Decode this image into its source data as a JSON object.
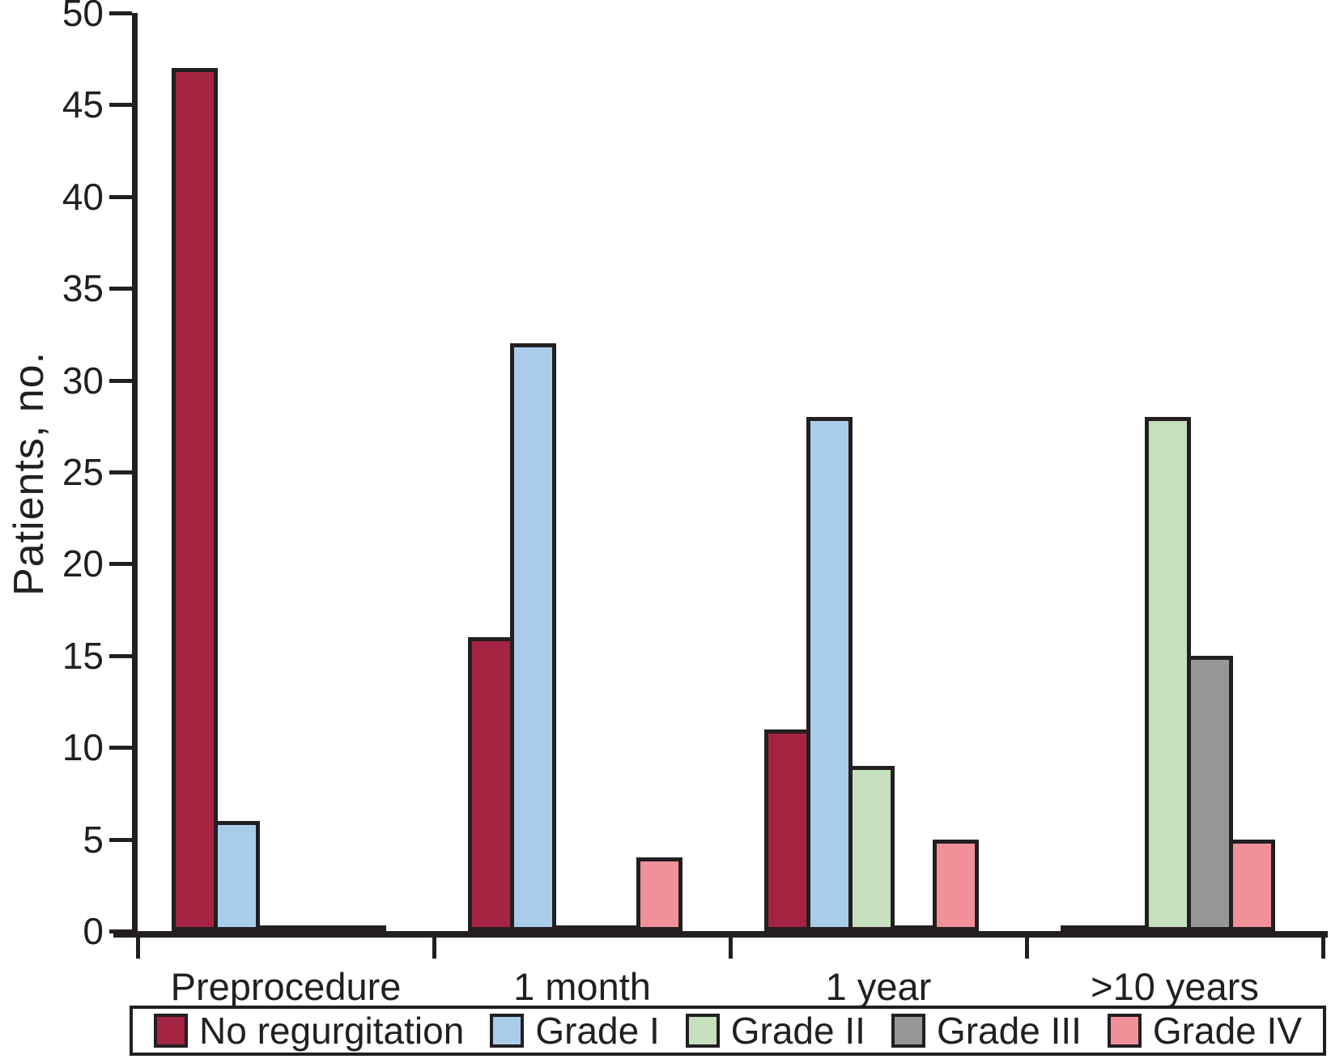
{
  "chart_data": {
    "type": "bar",
    "title": "",
    "xlabel": "",
    "ylabel": "Patients, no.",
    "ylim": [
      0,
      50
    ],
    "ytick_step": 5,
    "yticks": [
      0,
      5,
      10,
      15,
      20,
      25,
      30,
      35,
      40,
      45,
      50
    ],
    "grid": false,
    "legend_position": "bottom",
    "axis_color": "#231F20",
    "bar_outline_color": "#231F20",
    "categories": [
      "Preprocedure",
      "1 month",
      "1 year",
      ">10 years"
    ],
    "series": [
      {
        "name": "No regurgitation",
        "color": "#A42441",
        "values": [
          47,
          16,
          11,
          0
        ]
      },
      {
        "name": "Grade I",
        "color": "#AACCEB",
        "values": [
          6,
          32,
          28,
          0
        ]
      },
      {
        "name": "Grade II",
        "color": "#C6E0BE",
        "values": [
          0,
          0,
          9,
          28
        ]
      },
      {
        "name": "Grade III",
        "color": "#979797",
        "values": [
          0,
          0,
          0,
          15
        ]
      },
      {
        "name": "Grade IV",
        "color": "#F2909A",
        "values": [
          0,
          4,
          5,
          5
        ]
      }
    ]
  }
}
